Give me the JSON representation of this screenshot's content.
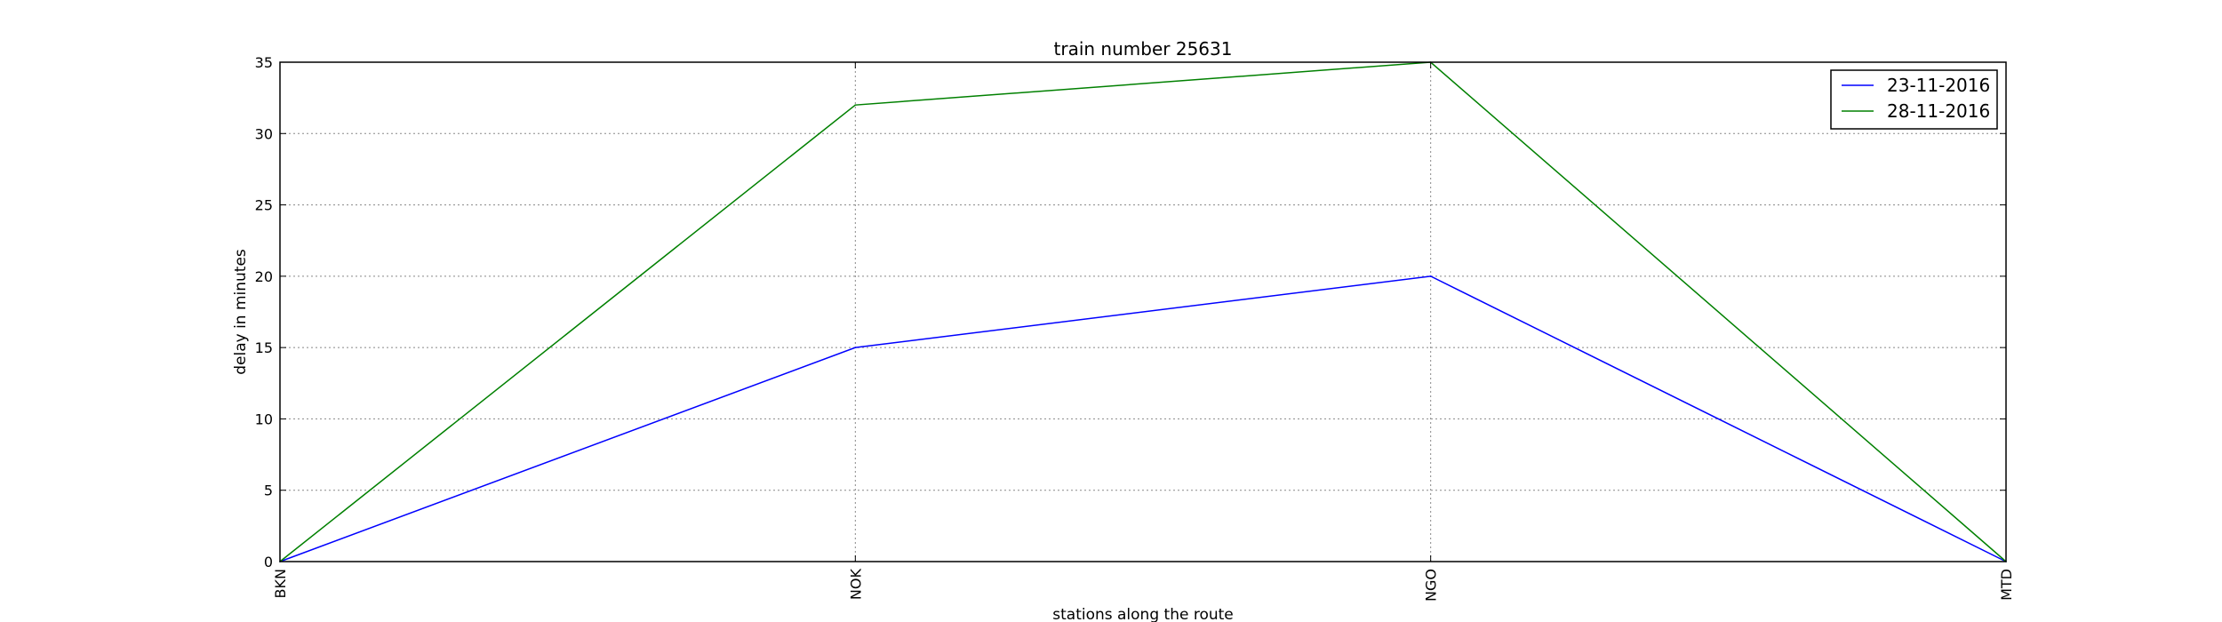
{
  "chart_data": {
    "type": "line",
    "title": "train number 25631",
    "xlabel": "stations along the route",
    "ylabel": "delay in minutes",
    "categories": [
      "BKN",
      "NOK",
      "NGO",
      "MTD"
    ],
    "ylim": [
      0,
      35
    ],
    "yticks": [
      0,
      5,
      10,
      15,
      20,
      25,
      30,
      35
    ],
    "grid": true,
    "legend_position": "top-right",
    "series": [
      {
        "name": "23-11-2016",
        "color": "#0000ff",
        "values": [
          0,
          15,
          20,
          0
        ]
      },
      {
        "name": "28-11-2016",
        "color": "#008000",
        "values": [
          0,
          32,
          35,
          0
        ]
      }
    ]
  }
}
